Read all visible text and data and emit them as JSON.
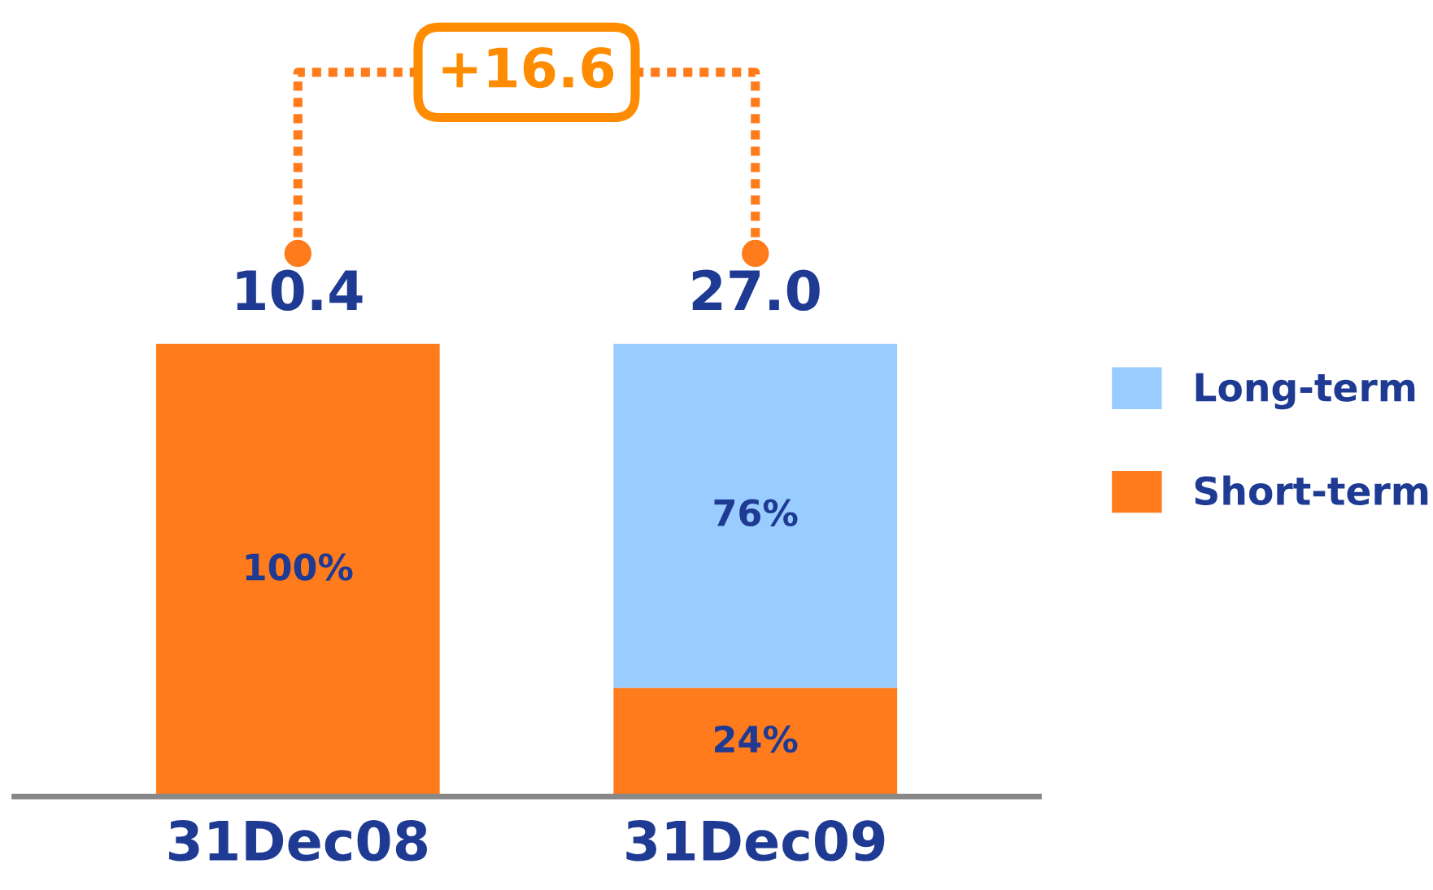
{
  "chart_data": {
    "type": "bar",
    "stacked": true,
    "categories": [
      "31Dec08",
      "31Dec09"
    ],
    "series": [
      {
        "name": "Short-term",
        "color": "#ff7b1c",
        "values": [
          100,
          24
        ],
        "value_labels": [
          "100%",
          "24%"
        ]
      },
      {
        "name": "Long-term",
        "color": "#99ccff",
        "values": [
          null,
          76
        ],
        "value_labels": [
          null,
          "76%"
        ]
      }
    ],
    "annotations": [
      "+16.6",
      {
        "text": "10.4",
        "x": "31Dec08",
        "y": 100
      },
      {
        "text": "27.0",
        "x": "31Dec09",
        "y": 100
      }
    ],
    "legend": "right",
    "grid": false
  }
}
